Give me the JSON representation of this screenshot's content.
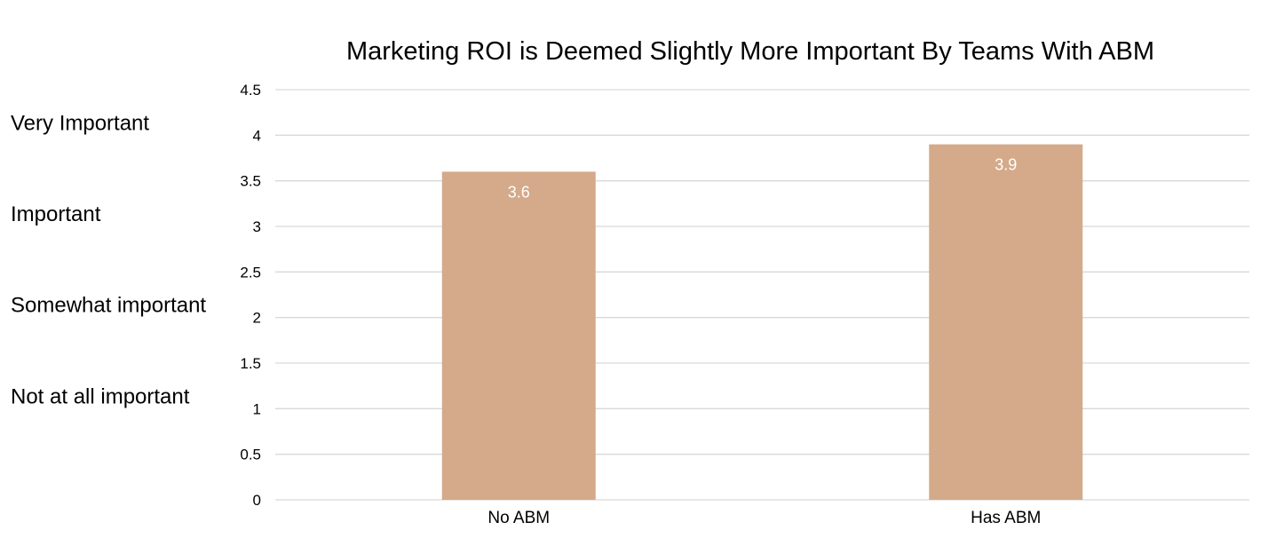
{
  "chart_data": {
    "type": "bar",
    "title": "Marketing ROI is Deemed Slightly More Important By Teams With ABM",
    "categories": [
      "No ABM",
      "Has ABM"
    ],
    "values": [
      3.6,
      3.9
    ],
    "data_labels": [
      "3.6",
      "3.9"
    ],
    "ylim": [
      0,
      4.5
    ],
    "yticks": [
      "0",
      "0.5",
      "1",
      "1.5",
      "2",
      "2.5",
      "3",
      "3.5",
      "4",
      "4.5"
    ],
    "scale_labels": [
      {
        "text": "Very Important",
        "value": 4
      },
      {
        "text": "Important",
        "value": 3
      },
      {
        "text": "Somewhat important",
        "value": 2
      },
      {
        "text": "Not at all important",
        "value": 1
      }
    ],
    "grid": true,
    "legend": "none",
    "bar_color": "#d4aa8a",
    "gridline_color": "#d9d9d9"
  }
}
